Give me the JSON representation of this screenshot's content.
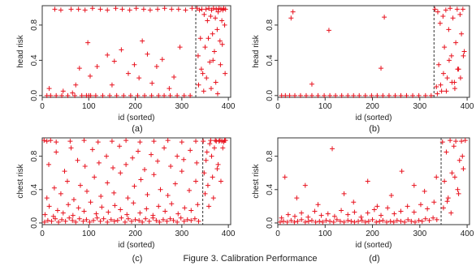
{
  "figure": {
    "caption": "Figure 3. Calibration Performance"
  },
  "colors": {
    "points": "#e8111d",
    "axis": "#333333",
    "cutoff": "#333333"
  },
  "chart_data": [
    {
      "type": "scatter",
      "panel_label": "(a)",
      "xlabel": "id (sorted)",
      "ylabel": "head risk",
      "xlim": [
        0,
        405
      ],
      "ylim": [
        -0.02,
        1.02
      ],
      "xticks": [
        0,
        100,
        200,
        300,
        400
      ],
      "yticks": [
        0.0,
        0.4,
        0.8
      ],
      "cutoff_x": 330,
      "marker": "+",
      "x": [
        10,
        18,
        30,
        42,
        55,
        70,
        85,
        95,
        100,
        104,
        115,
        130,
        145,
        160,
        175,
        190,
        205,
        220,
        235,
        250,
        262,
        275,
        290,
        305,
        318,
        27,
        40,
        62,
        78,
        92,
        108,
        125,
        140,
        158,
        172,
        188,
        202,
        218,
        232,
        248,
        263,
        278,
        293,
        308,
        322,
        15,
        45,
        65,
        72,
        80,
        98,
        103,
        118,
        140,
        150,
        155,
        170,
        185,
        198,
        208,
        215,
        226,
        236,
        246,
        258,
        273,
        283,
        296,
        333,
        335,
        338,
        340,
        343,
        345,
        348,
        350,
        352,
        355,
        358,
        360,
        362,
        364,
        366,
        368,
        370,
        372,
        374,
        376,
        378,
        380,
        382,
        384,
        386,
        388,
        390,
        392,
        394,
        336,
        342,
        347,
        353,
        357,
        363,
        367,
        373,
        377,
        383,
        387,
        393
      ],
      "y": [
        0,
        0,
        0,
        0,
        0,
        0,
        0,
        0,
        0,
        0,
        0,
        0,
        0,
        0,
        0,
        0,
        0,
        0,
        0,
        0,
        0,
        0,
        0,
        0,
        0,
        0.98,
        0.97,
        0.98,
        0.98,
        0.97,
        0.99,
        0.98,
        0.97,
        0.99,
        0.98,
        0.97,
        0.99,
        0.98,
        0.97,
        0.98,
        0.99,
        0.98,
        0.98,
        0.97,
        0.99,
        0.08,
        0.05,
        0.03,
        0.12,
        0.31,
        0.6,
        0.22,
        0.33,
        0.46,
        0.12,
        0.39,
        0.52,
        0.25,
        0.35,
        0.2,
        0.62,
        0.47,
        0.14,
        0.33,
        0.41,
        0.08,
        0.21,
        0.55,
        0.99,
        0.45,
        0.97,
        0.65,
        0.98,
        0.25,
        0.92,
        0.55,
        0.98,
        0.85,
        0.99,
        0.38,
        0.9,
        0.97,
        0.7,
        0.99,
        0.5,
        0.88,
        0.98,
        0.75,
        0.95,
        0.99,
        0.62,
        0.98,
        0.85,
        0.97,
        0.99,
        0.8,
        0.98,
        0.12,
        0.3,
        0.05,
        0.2,
        0.65,
        0.08,
        0.4,
        0.15,
        0.02,
        0.35,
        0.58,
        0.25
      ]
    },
    {
      "type": "scatter",
      "panel_label": "(b)",
      "xlabel": "id (sorted)",
      "ylabel": "head risk",
      "xlim": [
        0,
        405
      ],
      "ylim": [
        -0.02,
        1.02
      ],
      "xticks": [
        0,
        100,
        200,
        300,
        400
      ],
      "yticks": [
        0.0,
        0.4,
        0.8
      ],
      "cutoff_x": 330,
      "marker": "+",
      "x": [
        8,
        16,
        25,
        36,
        48,
        60,
        72,
        85,
        98,
        110,
        122,
        135,
        148,
        160,
        172,
        185,
        198,
        210,
        222,
        235,
        248,
        260,
        272,
        285,
        298,
        312,
        324,
        28,
        32,
        72,
        108,
        218,
        225,
        332,
        335,
        338,
        340,
        343,
        346,
        349,
        352,
        355,
        358,
        361,
        364,
        367,
        370,
        373,
        376,
        379,
        382,
        385,
        388,
        391,
        394,
        337,
        344,
        350,
        356,
        362,
        368,
        374,
        380,
        386,
        392
      ],
      "y": [
        0,
        0,
        0,
        0,
        0,
        0,
        0,
        0,
        0,
        0,
        0,
        0,
        0,
        0,
        0,
        0,
        0,
        0,
        0,
        0,
        0,
        0,
        0,
        0,
        0,
        0,
        0,
        0.88,
        0.95,
        0.13,
        0.74,
        0.31,
        0.89,
        0.98,
        0.1,
        0.95,
        0.35,
        0.82,
        0.05,
        0.9,
        0.55,
        0.97,
        0.2,
        0.75,
        0.99,
        0.45,
        0.88,
        0.15,
        0.6,
        0.98,
        0.3,
        0.92,
        0.7,
        0.98,
        0.5,
        0.02,
        0.12,
        0.25,
        0.05,
        0.4,
        0.15,
        0.08,
        0.3,
        0.2,
        0.45
      ]
    },
    {
      "type": "scatter",
      "panel_label": "(c)",
      "xlabel": "id (sorted)",
      "ylabel": "chest risk",
      "xlim": [
        0,
        405
      ],
      "ylim": [
        -0.02,
        1.02
      ],
      "xticks": [
        0,
        100,
        200,
        300,
        400
      ],
      "yticks": [
        0.0,
        0.4,
        0.8
      ],
      "cutoff_x": 345,
      "marker": "+",
      "x": [
        5,
        12,
        20,
        28,
        35,
        42,
        50,
        58,
        65,
        72,
        80,
        88,
        95,
        102,
        110,
        118,
        125,
        132,
        140,
        148,
        155,
        162,
        170,
        178,
        185,
        192,
        200,
        208,
        215,
        222,
        230,
        238,
        245,
        252,
        260,
        268,
        275,
        282,
        290,
        298,
        305,
        312,
        320,
        328,
        336,
        6,
        15,
        24,
        33,
        45,
        56,
        66,
        78,
        90,
        104,
        116,
        128,
        142,
        156,
        168,
        182,
        196,
        210,
        224,
        238,
        250,
        264,
        278,
        292,
        306,
        320,
        334,
        10,
        26,
        40,
        54,
        68,
        82,
        96,
        112,
        126,
        140,
        154,
        168,
        184,
        198,
        212,
        226,
        240,
        254,
        270,
        286,
        300,
        316,
        330,
        14,
        30,
        48,
        62,
        76,
        92,
        108,
        122,
        138,
        152,
        166,
        180,
        194,
        206,
        220,
        234,
        248,
        262,
        276,
        290,
        304,
        318,
        332,
        4,
        10,
        18,
        30,
        60,
        90,
        120,
        150,
        180,
        210,
        240,
        270,
        300,
        330,
        346,
        350,
        354,
        358,
        362,
        366,
        370,
        374,
        378,
        382,
        386,
        390,
        394,
        348,
        352,
        356,
        360,
        364,
        368,
        372,
        376,
        380,
        384,
        388,
        392
      ],
      "y": [
        0.01,
        0.03,
        0.02,
        0.05,
        0.01,
        0.04,
        0.02,
        0.06,
        0.03,
        0.01,
        0.05,
        0.02,
        0.04,
        0.01,
        0.03,
        0.06,
        0.02,
        0.05,
        0.01,
        0.04,
        0.02,
        0.03,
        0.06,
        0.01,
        0.05,
        0.02,
        0.04,
        0.03,
        0.01,
        0.05,
        0.02,
        0.06,
        0.03,
        0.01,
        0.04,
        0.02,
        0.05,
        0.03,
        0.01,
        0.06,
        0.02,
        0.04,
        0.03,
        0.05,
        0.02,
        0.1,
        0.2,
        0.08,
        0.15,
        0.12,
        0.22,
        0.09,
        0.18,
        0.14,
        0.25,
        0.11,
        0.19,
        0.13,
        0.21,
        0.16,
        0.1,
        0.24,
        0.12,
        0.17,
        0.09,
        0.2,
        0.14,
        0.23,
        0.11,
        0.18,
        0.15,
        0.22,
        0.3,
        0.42,
        0.35,
        0.5,
        0.28,
        0.45,
        0.38,
        0.55,
        0.32,
        0.48,
        0.36,
        0.6,
        0.3,
        0.44,
        0.52,
        0.34,
        0.58,
        0.4,
        0.33,
        0.47,
        0.62,
        0.39,
        0.5,
        0.7,
        0.85,
        0.62,
        0.9,
        0.75,
        0.68,
        0.88,
        0.72,
        0.8,
        0.66,
        0.92,
        0.7,
        0.78,
        0.86,
        0.64,
        0.82,
        0.74,
        0.9,
        0.68,
        0.8,
        0.76,
        0.87,
        0.72,
        0.99,
        0.98,
        0.99,
        0.97,
        0.98,
        0.99,
        0.97,
        0.98,
        0.99,
        0.97,
        0.98,
        0.99,
        0.97,
        0.98,
        0.98,
        0.35,
        0.85,
        0.2,
        0.99,
        0.55,
        0.9,
        0.98,
        0.7,
        0.99,
        0.98,
        0.97,
        0.99,
        0.6,
        0.75,
        0.45,
        0.95,
        0.8,
        0.3,
        0.99,
        0.65,
        0.98,
        0.5,
        0.9,
        0.99
      ]
    },
    {
      "type": "scatter",
      "panel_label": "(d)",
      "xlabel": "id (sorted)",
      "ylabel": "chest risk",
      "xlim": [
        0,
        405
      ],
      "ylim": [
        -0.02,
        1.02
      ],
      "xticks": [
        0,
        100,
        200,
        300,
        400
      ],
      "yticks": [
        0.0,
        0.4,
        0.8
      ],
      "cutoff_x": 345,
      "marker": "+",
      "x": [
        5,
        12,
        20,
        28,
        35,
        42,
        50,
        58,
        65,
        72,
        80,
        88,
        95,
        102,
        110,
        118,
        125,
        132,
        140,
        148,
        155,
        162,
        170,
        178,
        185,
        192,
        200,
        208,
        215,
        222,
        230,
        238,
        245,
        252,
        260,
        268,
        275,
        282,
        290,
        298,
        305,
        312,
        320,
        328,
        336,
        8,
        22,
        36,
        50,
        64,
        78,
        92,
        106,
        120,
        134,
        148,
        162,
        176,
        190,
        204,
        218,
        232,
        246,
        260,
        274,
        288,
        302,
        316,
        330,
        15,
        40,
        58,
        85,
        115,
        140,
        160,
        190,
        210,
        240,
        262,
        288,
        310,
        335,
        348,
        352,
        356,
        360,
        364,
        368,
        372,
        376,
        380,
        384,
        388,
        392,
        396,
        350,
        358,
        366,
        374,
        382,
        390
      ],
      "y": [
        0.01,
        0.02,
        0.01,
        0.03,
        0.01,
        0.02,
        0.04,
        0.01,
        0.02,
        0.03,
        0.01,
        0.02,
        0.01,
        0.03,
        0.02,
        0.01,
        0.04,
        0.02,
        0.01,
        0.03,
        0.02,
        0.01,
        0.02,
        0.03,
        0.01,
        0.02,
        0.04,
        0.01,
        0.02,
        0.03,
        0.01,
        0.02,
        0.01,
        0.03,
        0.02,
        0.01,
        0.04,
        0.02,
        0.01,
        0.03,
        0.02,
        0.05,
        0.03,
        0.06,
        0.04,
        0.06,
        0.1,
        0.08,
        0.12,
        0.07,
        0.14,
        0.09,
        0.11,
        0.08,
        0.15,
        0.1,
        0.13,
        0.07,
        0.12,
        0.16,
        0.09,
        0.18,
        0.11,
        0.14,
        0.2,
        0.13,
        0.22,
        0.17,
        0.25,
        0.55,
        0.3,
        0.45,
        0.22,
        0.89,
        0.35,
        0.25,
        0.5,
        0.2,
        0.33,
        0.62,
        0.45,
        0.38,
        0.55,
        0.97,
        0.5,
        0.85,
        0.3,
        0.99,
        0.6,
        0.92,
        0.98,
        0.4,
        0.75,
        0.98,
        0.65,
        0.99,
        0.18,
        0.26,
        0.12,
        0.55,
        0.35,
        0.8
      ]
    }
  ]
}
